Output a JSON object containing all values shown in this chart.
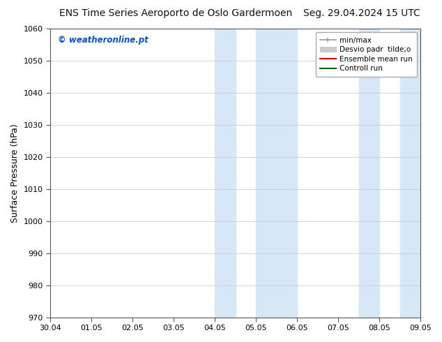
{
  "title_left": "ENS Time Series Aeroporto de Oslo Gardermoen",
  "title_right": "Seg. 29.04.2024 15 UTC",
  "ylabel": "Surface Pressure (hPa)",
  "ylim": [
    970,
    1060
  ],
  "yticks": [
    970,
    980,
    990,
    1000,
    1010,
    1020,
    1030,
    1040,
    1050,
    1060
  ],
  "xtick_labels": [
    "30.04",
    "01.05",
    "02.05",
    "03.05",
    "04.05",
    "05.05",
    "06.05",
    "07.05",
    "08.05",
    "09.05"
  ],
  "shaded_regions": [
    {
      "xstart": 4.0,
      "xend": 4.5
    },
    {
      "xstart": 5.0,
      "xend": 6.0
    },
    {
      "xstart": 7.5,
      "xend": 8.0
    },
    {
      "xstart": 8.5,
      "xend": 9.0
    }
  ],
  "shaded_color": "#d6e8f7",
  "watermark_text": "© weatheronline.pt",
  "watermark_color": "#0055cc",
  "legend_label_minmax": "min/max",
  "legend_label_desvio": "Desvio padr  tilde;o",
  "legend_label_ensemble": "Ensemble mean run",
  "legend_label_control": "Controll run",
  "legend_color_minmax": "#999999",
  "legend_color_desvio": "#cccccc",
  "legend_color_ensemble": "#dd0000",
  "legend_color_control": "#006600",
  "bg_color": "#ffffff",
  "grid_color": "#cccccc",
  "title_fontsize": 10,
  "tick_fontsize": 8,
  "ylabel_fontsize": 9,
  "legend_fontsize": 7.5
}
